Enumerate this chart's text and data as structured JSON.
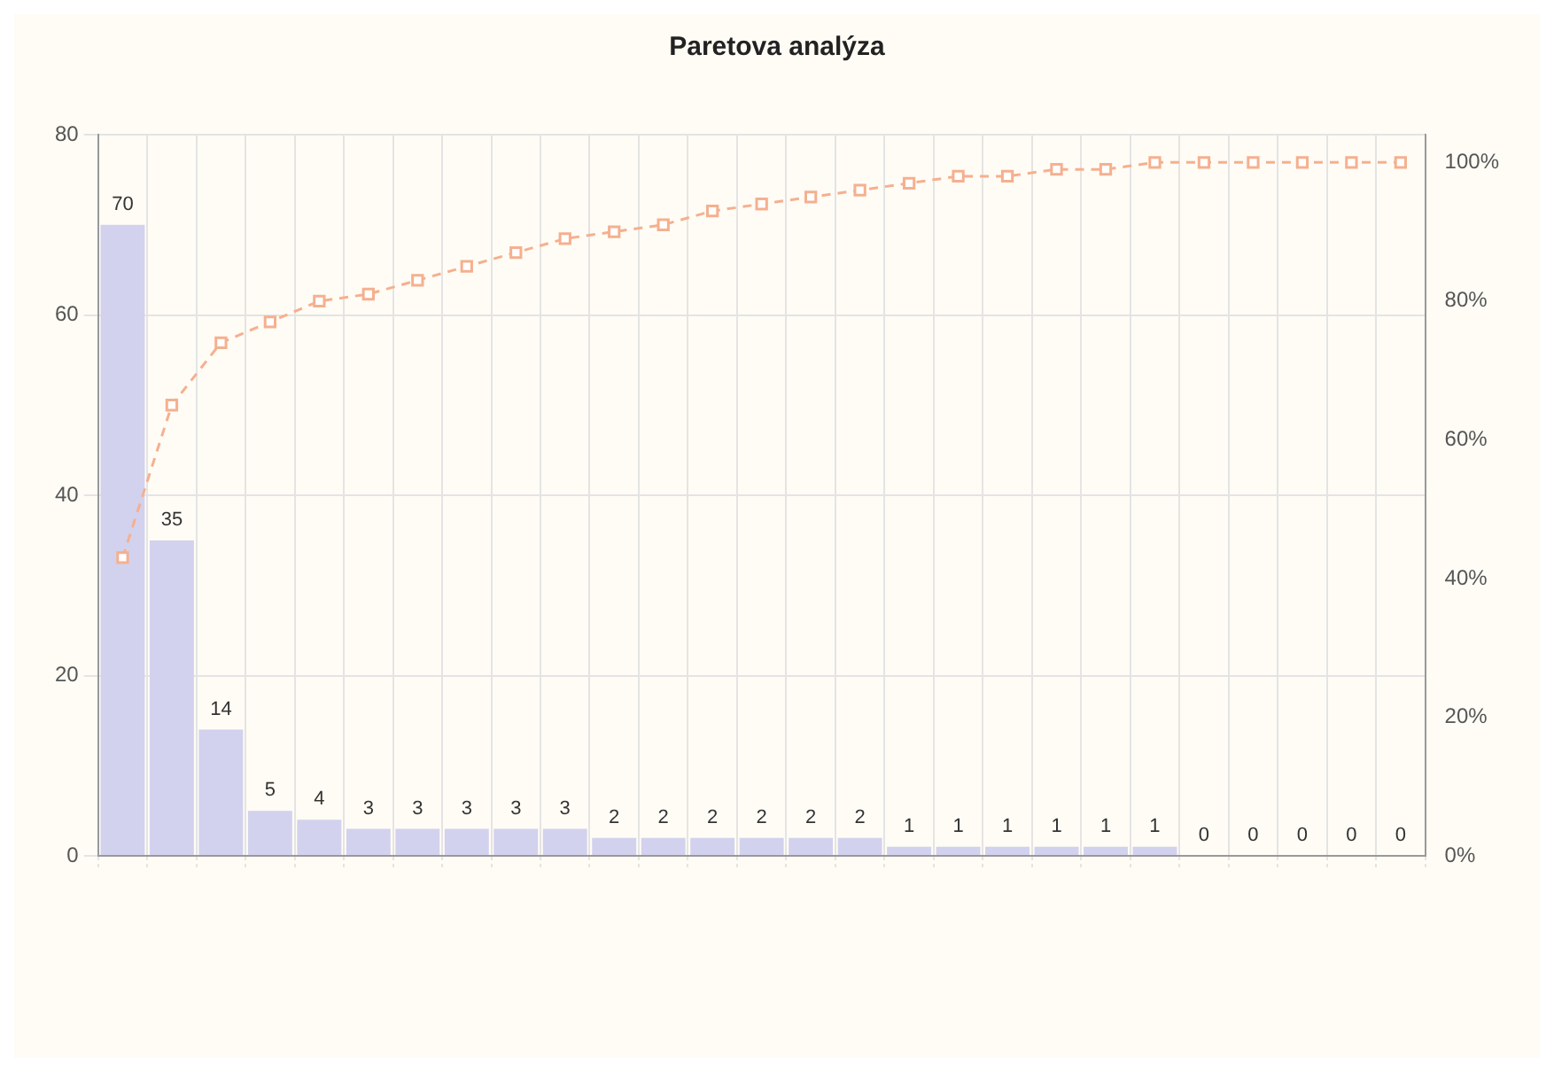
{
  "chart_data": {
    "type": "bar",
    "title": "Paretova analýza",
    "categories": [
      null,
      null,
      null,
      null,
      null,
      null,
      null,
      null,
      null,
      null,
      null,
      null,
      null,
      null,
      null,
      null,
      null,
      null,
      null,
      null,
      null,
      null,
      null,
      null,
      null,
      null,
      null
    ],
    "series": [
      {
        "color": "#d2d2ee",
        "values": [
          70,
          35,
          14,
          5,
          4,
          3,
          3,
          3,
          3,
          3,
          2,
          2,
          2,
          2,
          2,
          2,
          1,
          1,
          1,
          1,
          1,
          1,
          0,
          0,
          0,
          0,
          0
        ],
        "value_labels": [
          "70",
          "35",
          "14",
          "5",
          "4",
          "3",
          "3",
          "3",
          "3",
          "3",
          "2",
          "2",
          "2",
          "2",
          "2",
          "2",
          "1",
          "1",
          "1",
          "1",
          "1",
          "1",
          "0",
          "0",
          "0",
          "0",
          "0"
        ]
      },
      {
        "type": "line",
        "axis": "y2",
        "color": "#f5b08f",
        "marker": "square",
        "line_style": "dashed",
        "values": [
          43,
          65,
          74,
          77,
          80,
          81,
          83,
          85,
          87,
          89,
          90,
          91,
          93,
          94,
          95,
          96,
          97,
          98,
          98,
          99,
          99,
          100,
          100,
          100,
          100,
          100,
          100
        ]
      }
    ],
    "ylim": [
      0,
      80
    ],
    "yticks": [
      0,
      20,
      40,
      60,
      80
    ],
    "y2lim": [
      0,
      104
    ],
    "y2ticks": [
      {
        "value": 0,
        "label": "0%"
      },
      {
        "value": 20,
        "label": "20%"
      },
      {
        "value": 40,
        "label": "40%"
      },
      {
        "value": 60,
        "label": "60%"
      },
      {
        "value": 80,
        "label": "80%"
      },
      {
        "value": 100,
        "label": "100%"
      }
    ],
    "grid": true
  }
}
